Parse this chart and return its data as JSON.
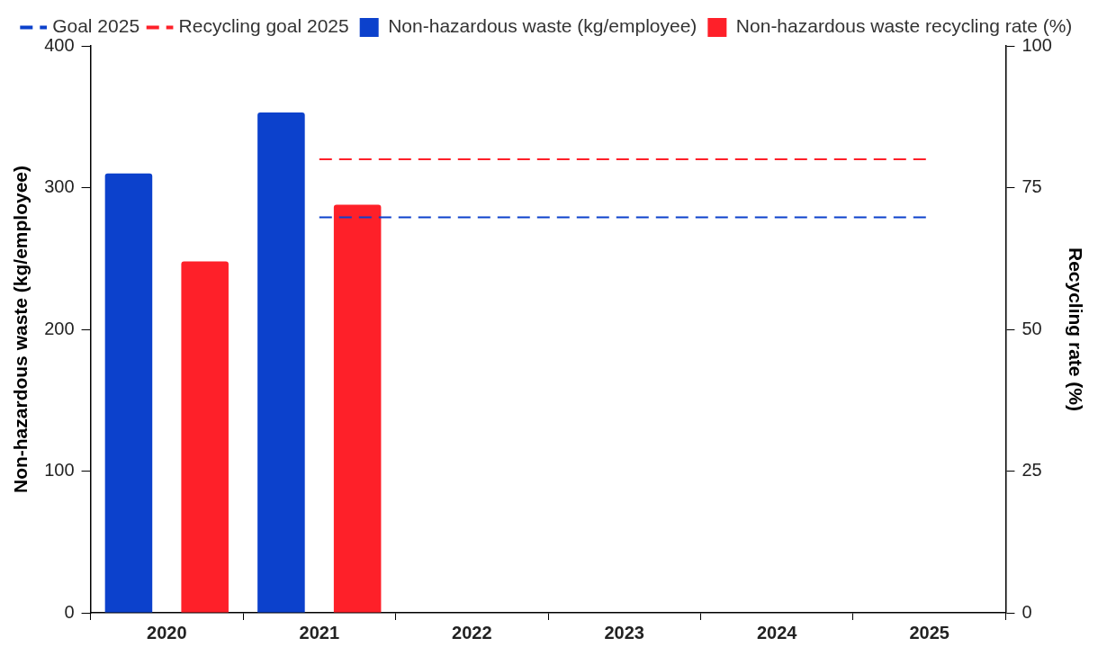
{
  "chart_data": {
    "type": "bar",
    "categories": [
      "2020",
      "2021",
      "2022",
      "2023",
      "2024",
      "2025"
    ],
    "ylabel": "Non-hazardous waste (kg/employee)",
    "y2label": "Recycling rate (%)",
    "ylim": [
      0,
      400
    ],
    "yticks": [
      0,
      100,
      200,
      300,
      400
    ],
    "y2lim": [
      0,
      100
    ],
    "y2ticks": [
      0,
      25,
      50,
      75,
      100
    ],
    "grid": false,
    "legend": "top",
    "series": [
      {
        "name": "Non-hazardous waste (kg/employee)",
        "color": "#0c41cc",
        "values": [
          310,
          353,
          null,
          null,
          null,
          null
        ]
      },
      {
        "name": "Non-hazardous waste recycling rate (%)",
        "color": "#fe2029",
        "axis": "y2",
        "values": [
          62,
          72,
          null,
          null,
          null,
          null
        ]
      },
      {
        "name": "Goal 2025",
        "type": "line",
        "line_style": "dashed",
        "marker": "none",
        "color": "#0c41cc",
        "values": [
          null,
          279,
          279,
          279,
          279,
          279
        ]
      },
      {
        "name": "Recycling goal 2025",
        "type": "line",
        "line_style": "dashed",
        "marker": "none",
        "color": "#fe2029",
        "axis": "y2",
        "values": [
          null,
          80,
          80,
          80,
          80,
          80
        ]
      }
    ]
  }
}
